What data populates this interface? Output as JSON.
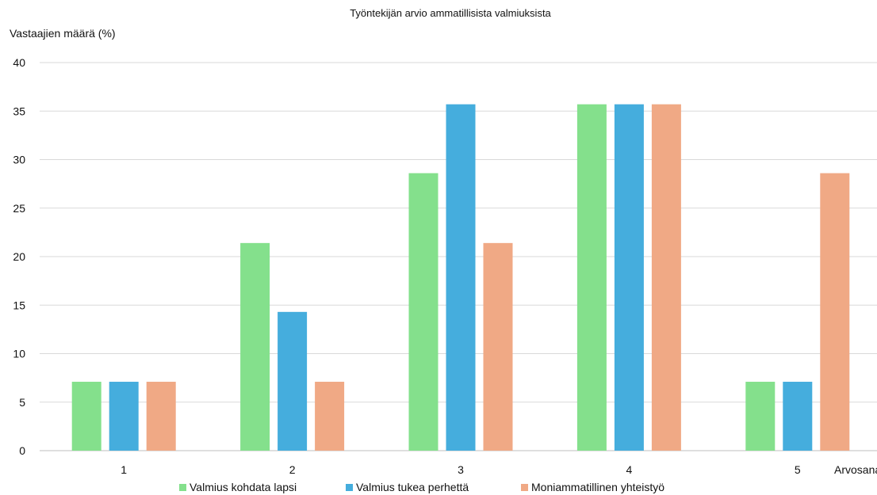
{
  "chart_data": {
    "type": "bar",
    "title": "Työntekijän arvio ammatillisista valmiuksista",
    "ylabel": "Vastaajien määrä (%)",
    "xlabel": "Arvosana",
    "categories": [
      "1",
      "2",
      "3",
      "4",
      "5"
    ],
    "ylim": [
      0,
      40
    ],
    "yticks": [
      0,
      5,
      10,
      15,
      20,
      25,
      30,
      35,
      40
    ],
    "grid": true,
    "legend_position": "bottom",
    "series": [
      {
        "name": "Valmius kohdata lapsi",
        "color": "#84e08c",
        "values": [
          7.1,
          21.4,
          28.6,
          35.7,
          7.1
        ]
      },
      {
        "name": "Valmius tukea perhettä",
        "color": "#45addd",
        "values": [
          7.1,
          14.3,
          35.7,
          35.7,
          7.1
        ]
      },
      {
        "name": "Moniammatillinen yhteistyö",
        "color": "#f0a985",
        "values": [
          7.1,
          7.1,
          21.4,
          35.7,
          28.6
        ]
      }
    ]
  }
}
